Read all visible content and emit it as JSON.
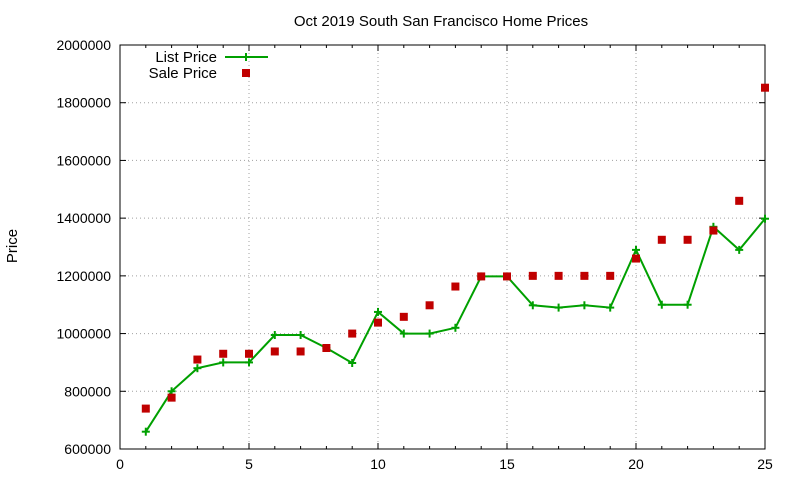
{
  "chart_data": {
    "type": "line",
    "title": "Oct 2019 South San Francisco Home Prices",
    "xlabel": "",
    "ylabel": "Price",
    "xlim": [
      0,
      25
    ],
    "ylim": [
      600000,
      2000000
    ],
    "xticks": [
      0,
      5,
      10,
      15,
      20,
      25
    ],
    "yticks": [
      600000,
      800000,
      1000000,
      1200000,
      1400000,
      1600000,
      1800000,
      2000000
    ],
    "grid": true,
    "legend_position": "top-left",
    "series": [
      {
        "name": "List Price",
        "style": "lines+crosses",
        "color": "#00a000",
        "x": [
          1,
          2,
          3,
          4,
          5,
          6,
          7,
          8,
          9,
          10,
          11,
          12,
          13,
          14,
          15,
          16,
          17,
          18,
          19,
          20,
          21,
          22,
          23,
          24,
          25
        ],
        "y": [
          660000,
          800000,
          880000,
          900000,
          900000,
          995000,
          995000,
          950000,
          898000,
          1075000,
          1000000,
          1000000,
          1020000,
          1198000,
          1198000,
          1098000,
          1090000,
          1098000,
          1090000,
          1290000,
          1100000,
          1100000,
          1370000,
          1290000,
          1398000
        ]
      },
      {
        "name": "Sale Price",
        "style": "squares",
        "color": "#c00000",
        "x": [
          1,
          2,
          3,
          4,
          5,
          6,
          7,
          8,
          9,
          10,
          11,
          12,
          13,
          14,
          15,
          16,
          17,
          18,
          19,
          20,
          21,
          22,
          23,
          24,
          25
        ],
        "y": [
          740000,
          778000,
          910000,
          930000,
          930000,
          938000,
          938000,
          950000,
          1000000,
          1038000,
          1058000,
          1098000,
          1163000,
          1198000,
          1198000,
          1200000,
          1200000,
          1200000,
          1200000,
          1260000,
          1325000,
          1325000,
          1357000,
          1460000,
          1852000
        ]
      }
    ]
  }
}
